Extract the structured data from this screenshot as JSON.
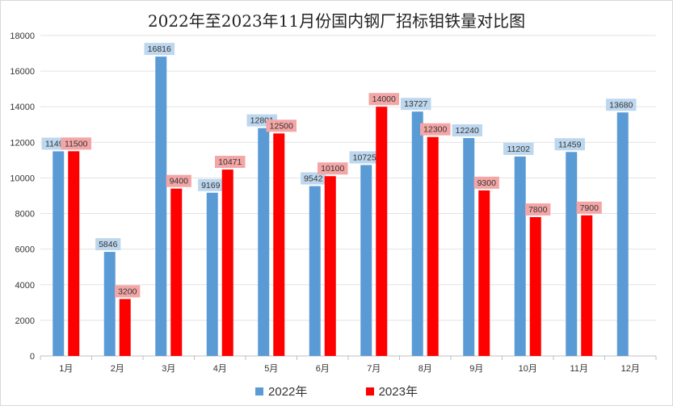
{
  "chart_data": {
    "type": "bar",
    "title": "2022年至2023年11月份国内钢厂招标钼铁量对比图",
    "categories": [
      "1月",
      "2月",
      "3月",
      "4月",
      "5月",
      "6月",
      "7月",
      "8月",
      "9月",
      "10月",
      "11月",
      "12月"
    ],
    "ylim": [
      0,
      18000
    ],
    "yticks": [
      0,
      2000,
      4000,
      6000,
      8000,
      10000,
      12000,
      14000,
      16000,
      18000
    ],
    "grid": true,
    "legend_position": "bottom",
    "series": [
      {
        "name": "2022年",
        "color": "#5b9bd5",
        "label_bg": "#bdd7ee",
        "values": [
          11495,
          5846,
          16816,
          9169,
          12801,
          9542,
          10725,
          13727,
          12240,
          11202,
          11459,
          13680
        ]
      },
      {
        "name": "2023年",
        "color": "#ff0000",
        "label_bg": "#f4a6a6",
        "values": [
          11500,
          3200,
          9400,
          10471,
          12500,
          10100,
          14000,
          12300,
          9300,
          7800,
          7900,
          null
        ]
      }
    ]
  }
}
